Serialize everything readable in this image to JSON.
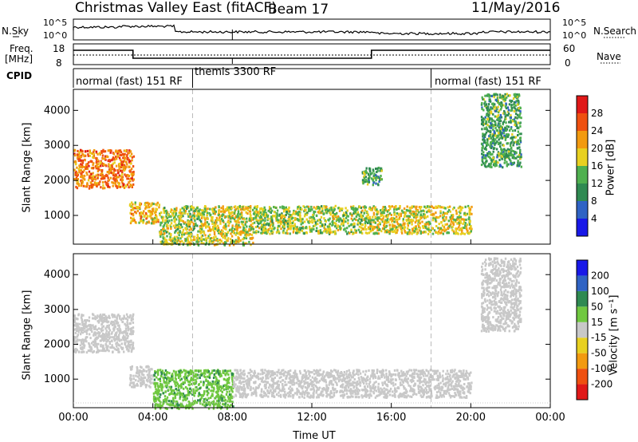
{
  "header": {
    "title": "Christmas Valley East (fitACF)",
    "beam": "Beam 17",
    "date": "11/May/2016"
  },
  "top_panels": {
    "nsky_label": "N.Sky",
    "nsky_ticks": [
      "10^5",
      "10^0"
    ],
    "nsearch_label": "N.Search",
    "freq_label_1": "Freq.",
    "freq_label_2": "[MHz]",
    "freq_ticks": [
      "18",
      "8"
    ],
    "nave_label": "Nave",
    "nave_ticks": [
      "60",
      "0"
    ],
    "cpid_label": "CPID",
    "cpid_segments": [
      "normal (fast) 151 RF",
      "themis 3300 RF",
      "normal (fast) 151 RF"
    ]
  },
  "chart_data": [
    {
      "type": "heatmap",
      "name": "power",
      "ylabel": "Slant Range [km]",
      "yticks": [
        1000,
        2000,
        3000,
        4000
      ],
      "ylim": [
        180,
        4600
      ],
      "xlim": [
        0,
        24
      ],
      "colorbar": {
        "label": "Power [dB]",
        "ticks": [
          "4",
          "8",
          "12",
          "16",
          "20",
          "24",
          "28"
        ],
        "colors": [
          "#1818e8",
          "#2f63c4",
          "#2f8a52",
          "#4fb04f",
          "#e8d020",
          "#f29a10",
          "#ef5010",
          "#e01818"
        ]
      },
      "echo_regions": [
        {
          "t": [
            0.0,
            3.0
          ],
          "r": [
            1800,
            2900
          ],
          "v": 24
        },
        {
          "t": [
            2.8,
            4.3
          ],
          "r": [
            800,
            1400
          ],
          "v": 20
        },
        {
          "t": [
            4.3,
            6.5
          ],
          "r": [
            180,
            1300
          ],
          "v": 16
        },
        {
          "t": [
            6.5,
            9.0
          ],
          "r": [
            180,
            1300
          ],
          "v": 18
        },
        {
          "t": [
            9.0,
            15.0
          ],
          "r": [
            500,
            1300
          ],
          "v": 16
        },
        {
          "t": [
            15.0,
            20.0
          ],
          "r": [
            500,
            1300
          ],
          "v": 18
        },
        {
          "t": [
            14.5,
            15.5
          ],
          "r": [
            1900,
            2400
          ],
          "v": 12
        },
        {
          "t": [
            20.5,
            22.5
          ],
          "r": [
            2400,
            4500
          ],
          "v": 12
        }
      ]
    },
    {
      "type": "heatmap",
      "name": "velocity",
      "ylabel": "Slant Range [km]",
      "yticks": [
        1000,
        2000,
        3000,
        4000
      ],
      "ylim": [
        180,
        4600
      ],
      "xlim": [
        0,
        24
      ],
      "xlabel": "Time UT",
      "xticks": [
        "00:00",
        "04:00",
        "08:00",
        "12:00",
        "16:00",
        "20:00",
        "00:00"
      ],
      "colorbar": {
        "label": "Velocity [m s⁻¹]",
        "ticks": [
          "-200",
          "-100",
          "-50",
          "-15",
          "15",
          "50",
          "100",
          "200"
        ],
        "colors": [
          "#e01818",
          "#ef5010",
          "#f29a10",
          "#e8d020",
          "#c8c8c8",
          "#70c840",
          "#2f8a52",
          "#2f63c4",
          "#1818e8"
        ]
      },
      "echo_regions": [
        {
          "t": [
            0.0,
            3.0
          ],
          "r": [
            1800,
            2900
          ],
          "v": 0
        },
        {
          "t": [
            2.8,
            4.0
          ],
          "r": [
            800,
            1400
          ],
          "v": 0
        },
        {
          "t": [
            4.0,
            8.0
          ],
          "r": [
            180,
            1300
          ],
          "v": 40
        },
        {
          "t": [
            8.0,
            20.0
          ],
          "r": [
            500,
            1300
          ],
          "v": 0
        },
        {
          "t": [
            20.5,
            22.5
          ],
          "r": [
            2400,
            4500
          ],
          "v": 0
        }
      ]
    }
  ]
}
